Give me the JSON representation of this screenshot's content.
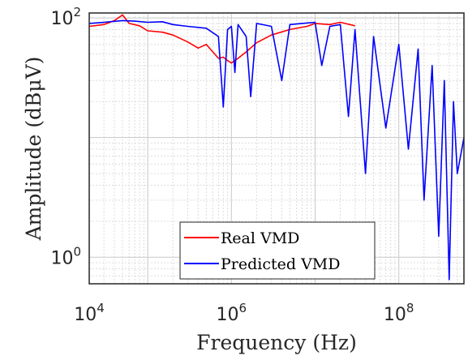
{
  "chart_data": {
    "type": "line",
    "title": "",
    "xlabel": "Frequency (Hz)",
    "ylabel": "Amplitude (dBμV)",
    "xscale": "log",
    "yscale": "log",
    "xlim": [
      20000,
      600000000
    ],
    "ylim": [
      0.6,
      110
    ],
    "grid": true,
    "legend_position": "bottom-center",
    "x_ticks": [
      {
        "value": 10000,
        "base": "10",
        "exp": "4"
      },
      {
        "value": 1000000,
        "base": "10",
        "exp": "6"
      },
      {
        "value": 100000000,
        "base": "10",
        "exp": "8"
      }
    ],
    "y_ticks": [
      {
        "value": 1,
        "base": "10",
        "exp": "0"
      },
      {
        "value": 100,
        "base": "10",
        "exp": "2"
      }
    ],
    "series": [
      {
        "name": "Real VMD",
        "color": "#ff0000",
        "points": [
          [
            20000,
            85
          ],
          [
            30000,
            88
          ],
          [
            40000,
            95
          ],
          [
            50000,
            106
          ],
          [
            60000,
            90
          ],
          [
            80000,
            86
          ],
          [
            100000,
            78
          ],
          [
            150000,
            76
          ],
          [
            200000,
            72
          ],
          [
            300000,
            63
          ],
          [
            400000,
            56
          ],
          [
            500000,
            60
          ],
          [
            600000,
            52
          ],
          [
            700000,
            46
          ],
          [
            800000,
            47
          ],
          [
            900000,
            44
          ],
          [
            1000000,
            42
          ],
          [
            1200000,
            46
          ],
          [
            1500000,
            52
          ],
          [
            2000000,
            62
          ],
          [
            3000000,
            72
          ],
          [
            5000000,
            80
          ],
          [
            8000000,
            85
          ],
          [
            10000000,
            90
          ],
          [
            15000000,
            88
          ],
          [
            20000000,
            92
          ],
          [
            30000000,
            86
          ]
        ]
      },
      {
        "name": "Predicted VMD",
        "color": "#0000ff",
        "points": [
          [
            20000,
            90
          ],
          [
            30000,
            92
          ],
          [
            50000,
            95
          ],
          [
            70000,
            94
          ],
          [
            100000,
            92
          ],
          [
            150000,
            93
          ],
          [
            200000,
            88
          ],
          [
            300000,
            85
          ],
          [
            500000,
            82
          ],
          [
            700000,
            70
          ],
          [
            800000,
            18
          ],
          [
            900000,
            80
          ],
          [
            1000000,
            85
          ],
          [
            1100000,
            35
          ],
          [
            1200000,
            88
          ],
          [
            1500000,
            70
          ],
          [
            1700000,
            22
          ],
          [
            2000000,
            90
          ],
          [
            3000000,
            85
          ],
          [
            4000000,
            30
          ],
          [
            5000000,
            88
          ],
          [
            7000000,
            90
          ],
          [
            10000000,
            92
          ],
          [
            12000000,
            40
          ],
          [
            15000000,
            85
          ],
          [
            20000000,
            88
          ],
          [
            25000000,
            15
          ],
          [
            30000000,
            80
          ],
          [
            40000000,
            5
          ],
          [
            50000000,
            70
          ],
          [
            70000000,
            12
          ],
          [
            100000000,
            60
          ],
          [
            130000000,
            8
          ],
          [
            170000000,
            55
          ],
          [
            200000000,
            3
          ],
          [
            250000000,
            40
          ],
          [
            300000000,
            1.5
          ],
          [
            350000000,
            30
          ],
          [
            400000000,
            0.65
          ],
          [
            450000000,
            20
          ],
          [
            500000000,
            5
          ],
          [
            600000000,
            10
          ]
        ]
      }
    ]
  }
}
